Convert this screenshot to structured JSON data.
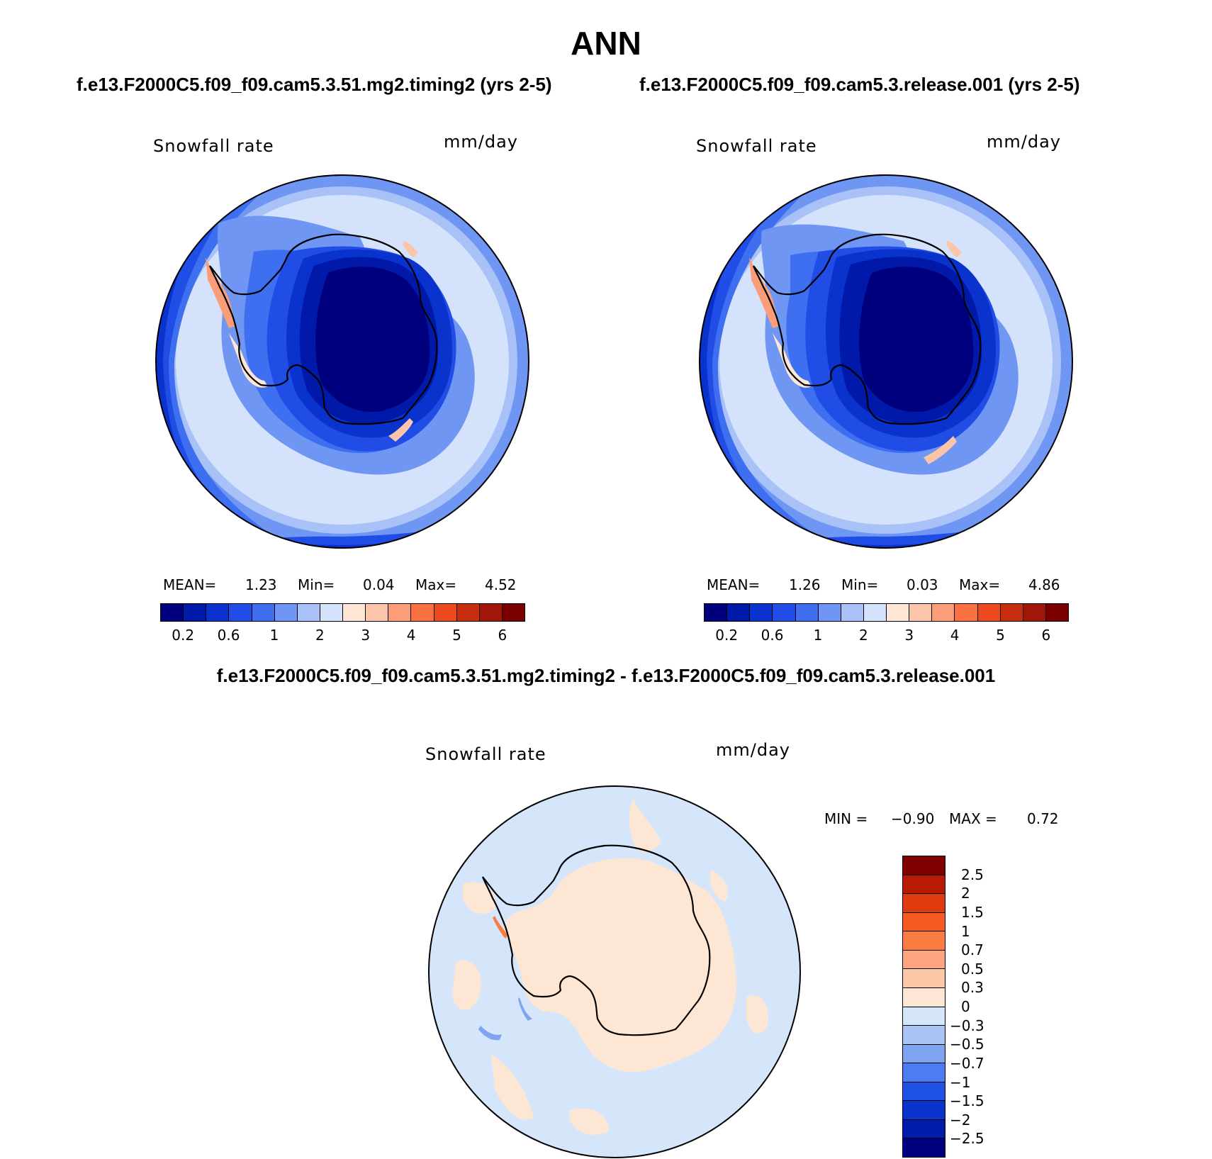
{
  "figure": {
    "title": "ANN",
    "panel_left_title": "f.e13.F2000C5.f09_f09.cam5.3.51.mg2.timing2 (yrs 2-5)",
    "panel_right_title": "f.e13.F2000C5.f09_f09.cam5.3.release.001 (yrs 2-5)",
    "diff_title": "f.e13.F2000C5.f09_f09.cam5.3.51.mg2.timing2 - f.e13.F2000C5.f09_f09.cam5.3.release.001"
  },
  "panels": {
    "left": {
      "variable": "Snowfall rate",
      "units": "mm/day",
      "mean_label": "MEAN=",
      "mean": "1.23",
      "min_label": "Min=",
      "min": "0.04",
      "max_label": "Max=",
      "max": "4.52"
    },
    "right": {
      "variable": "Snowfall rate",
      "units": "mm/day",
      "mean_label": "MEAN=",
      "mean": "1.26",
      "min_label": "Min=",
      "min": "0.03",
      "max_label": "Max=",
      "max": "4.86"
    },
    "diff": {
      "variable": "Snowfall rate",
      "units": "mm/day",
      "min_label": "MIN =",
      "min": "−0.90",
      "max_label": "MAX =",
      "max": "0.72"
    }
  },
  "colorbars": {
    "abs": {
      "colors": [
        "#00007f",
        "#0019a8",
        "#0a32cc",
        "#1f4de6",
        "#3d6ff0",
        "#6f96f2",
        "#a8c1f7",
        "#d4e3fb",
        "#fde6d6",
        "#fcc4a8",
        "#fc9d7a",
        "#fa7040",
        "#ea4a1e",
        "#c82d10",
        "#a01608",
        "#7a0000"
      ],
      "labels": [
        "0.2",
        "0.6",
        "1",
        "2",
        "3",
        "4",
        "5",
        "6"
      ]
    },
    "diff": {
      "colors": [
        "#7f0000",
        "#b81a05",
        "#e03a10",
        "#f55a20",
        "#fb7c43",
        "#fca57f",
        "#fdc8a8",
        "#fee6d4",
        "#d5e6fb",
        "#aac4f6",
        "#7fa4f1",
        "#4d7cf0",
        "#2152e6",
        "#0a35cc",
        "#001ca8",
        "#00007f"
      ],
      "labels": [
        "2.5",
        "2",
        "1.5",
        "1",
        "0.7",
        "0.5",
        "0.3",
        "0",
        "−0.3",
        "−0.5",
        "−0.7",
        "−1",
        "−1.5",
        "−2",
        "−2.5"
      ]
    }
  }
}
